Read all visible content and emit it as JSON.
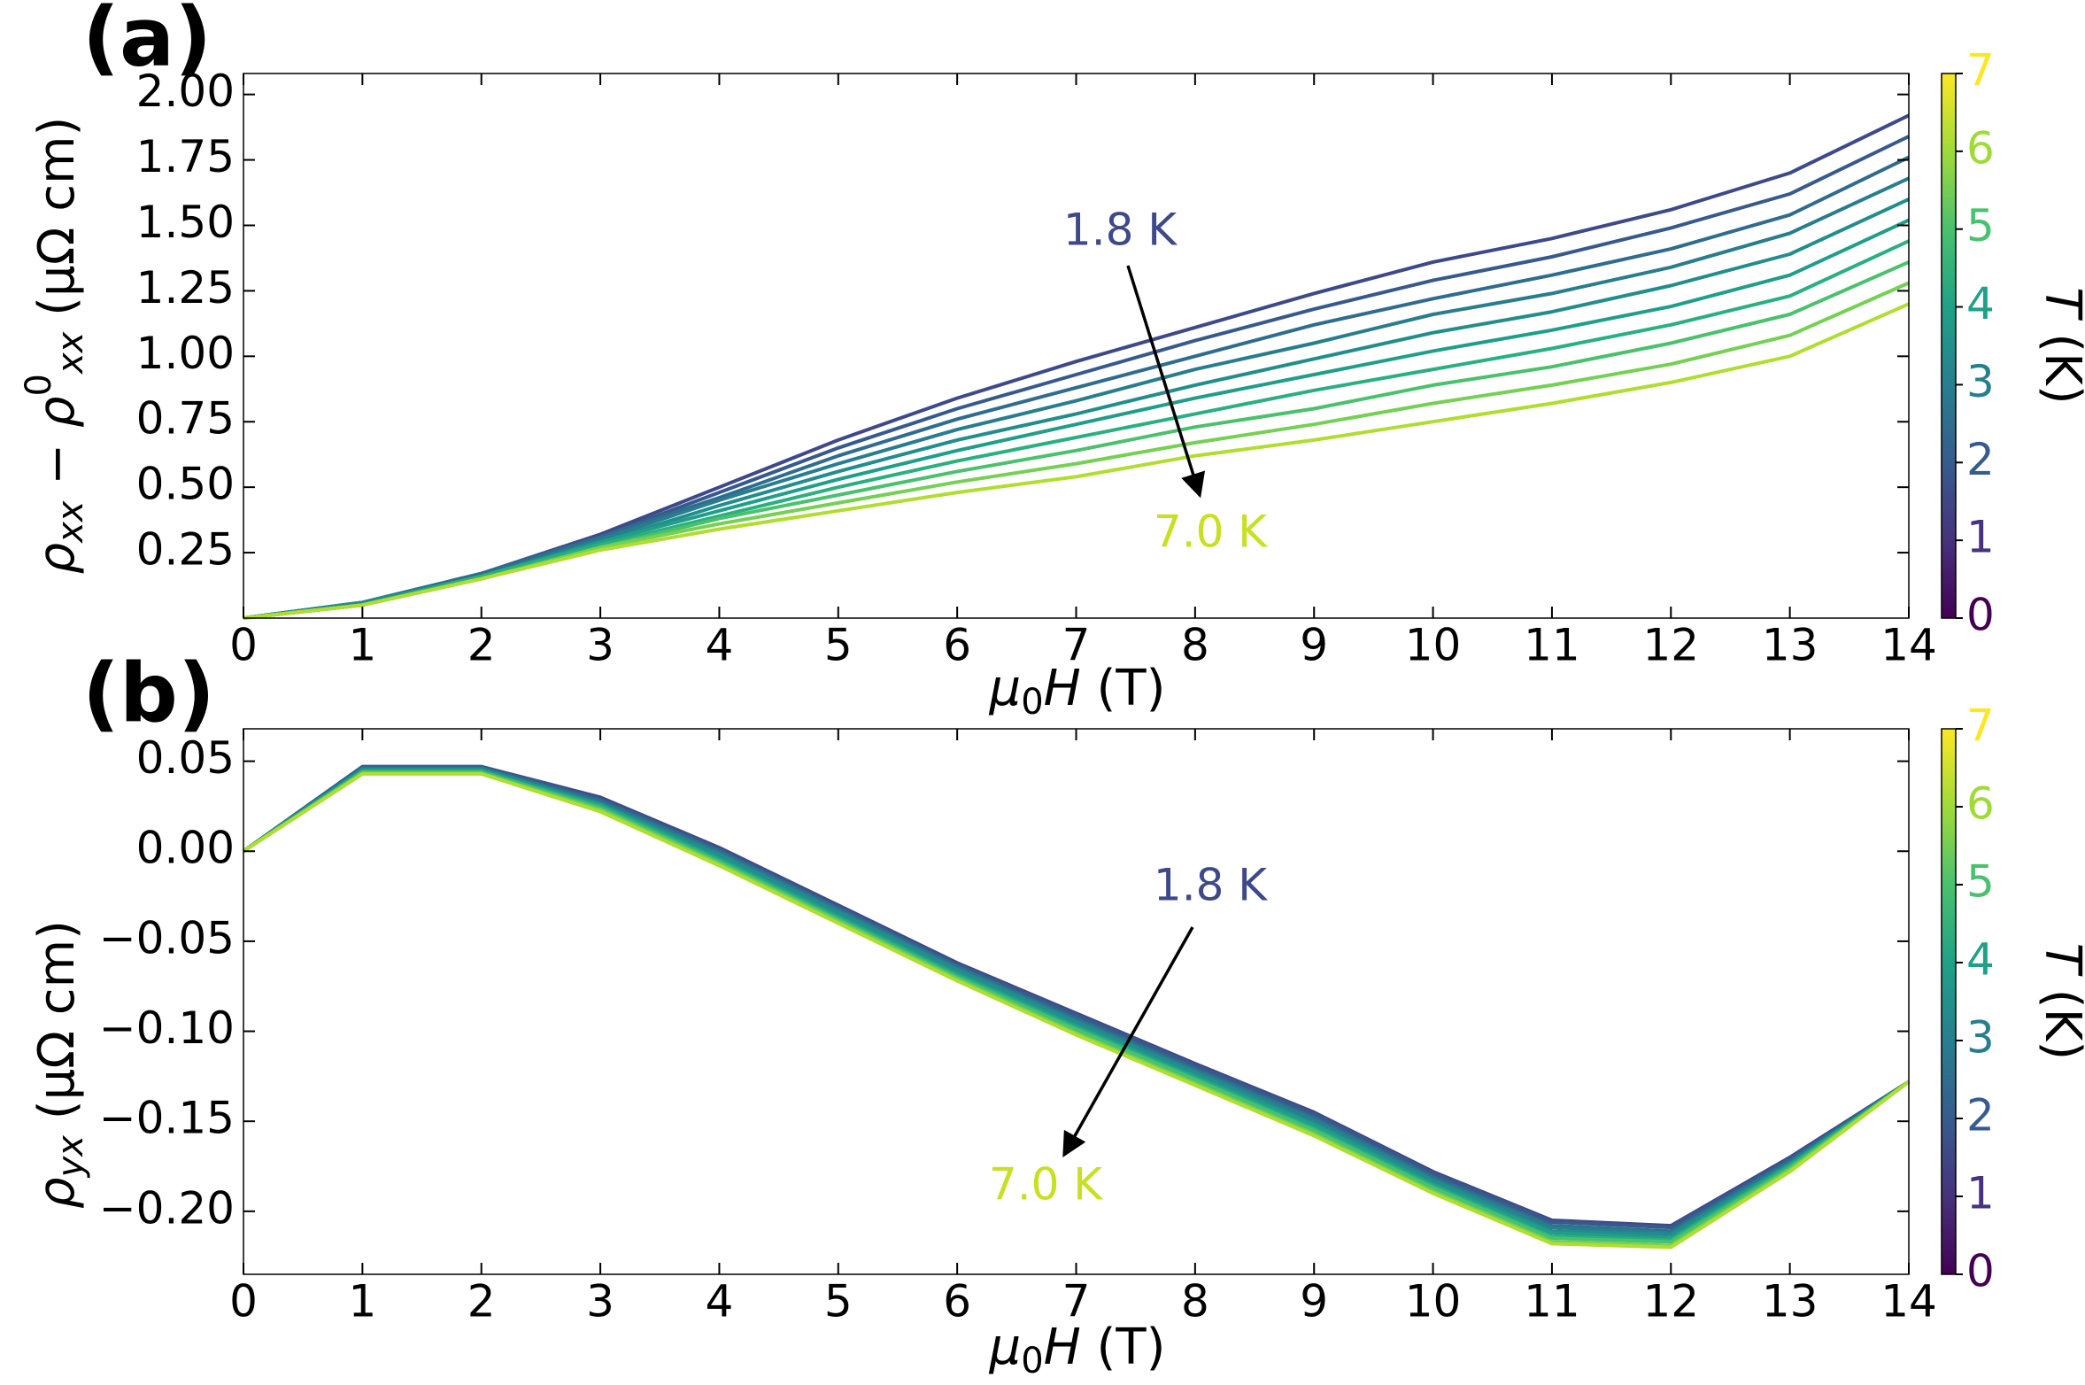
{
  "chart_data": [
    {
      "type": "line",
      "panel_label": "(a)",
      "xlabel": [
        {
          "text": "μ",
          "italic": true
        },
        {
          "text": "0",
          "sub": true
        },
        {
          "text": "H",
          "italic": true
        },
        {
          "text": " (T)"
        }
      ],
      "ylabel": [
        {
          "text": "ρ",
          "italic": true
        },
        {
          "text": "xx",
          "sub": true,
          "italic": true
        },
        {
          "text": " − "
        },
        {
          "text": "ρ",
          "italic": true
        },
        {
          "text": "0",
          "sup": true
        },
        {
          "text": "xx",
          "sub": true,
          "italic": true
        },
        {
          "text": " (μΩ cm)"
        }
      ],
      "x": [
        0,
        1,
        2,
        3,
        4,
        5,
        6,
        7,
        8,
        9,
        10,
        11,
        12,
        13,
        14
      ],
      "xlim": [
        0,
        14
      ],
      "xticks": [
        0,
        1,
        2,
        3,
        4,
        5,
        6,
        7,
        8,
        9,
        10,
        11,
        12,
        13,
        14
      ],
      "ylim": [
        0,
        2.08
      ],
      "yticks": [
        0.25,
        {
          "value": 0.5,
          "label": "0.50"
        },
        0.75,
        {
          "value": 1,
          "label": "1.00"
        },
        1.25,
        {
          "value": 1.5,
          "label": "1.50"
        },
        1.75,
        {
          "value": 2,
          "label": "2.00"
        }
      ],
      "grid": false,
      "series": [
        {
          "color": "#3e4989",
          "values": [
            0,
            0.06,
            0.17,
            0.32,
            0.5,
            0.68,
            0.84,
            0.98,
            1.11,
            1.24,
            1.36,
            1.45,
            1.56,
            1.7,
            1.92
          ]
        },
        {
          "color": "#375a8c",
          "values": [
            0,
            0.06,
            0.17,
            0.31,
            0.48,
            0.65,
            0.8,
            0.93,
            1.06,
            1.18,
            1.29,
            1.38,
            1.49,
            1.62,
            1.84
          ]
        },
        {
          "color": "#2f6c8e",
          "values": [
            0,
            0.06,
            0.17,
            0.31,
            0.46,
            0.62,
            0.76,
            0.88,
            1.0,
            1.12,
            1.22,
            1.31,
            1.41,
            1.54,
            1.76
          ]
        },
        {
          "color": "#287d8e",
          "values": [
            0,
            0.06,
            0.16,
            0.3,
            0.45,
            0.59,
            0.72,
            0.83,
            0.95,
            1.05,
            1.16,
            1.24,
            1.34,
            1.47,
            1.68
          ]
        },
        {
          "color": "#228d8d",
          "values": [
            0,
            0.06,
            0.16,
            0.29,
            0.43,
            0.56,
            0.68,
            0.78,
            0.89,
            0.99,
            1.09,
            1.17,
            1.27,
            1.39,
            1.6
          ]
        },
        {
          "color": "#1f9e89",
          "values": [
            0,
            0.05,
            0.16,
            0.29,
            0.41,
            0.53,
            0.64,
            0.74,
            0.84,
            0.93,
            1.02,
            1.1,
            1.19,
            1.31,
            1.52
          ]
        },
        {
          "color": "#2ab07f",
          "values": [
            0,
            0.05,
            0.16,
            0.28,
            0.39,
            0.5,
            0.6,
            0.69,
            0.78,
            0.87,
            0.95,
            1.03,
            1.12,
            1.23,
            1.44
          ]
        },
        {
          "color": "#4ac16d",
          "values": [
            0,
            0.05,
            0.15,
            0.27,
            0.38,
            0.47,
            0.56,
            0.64,
            0.73,
            0.8,
            0.89,
            0.96,
            1.05,
            1.16,
            1.36
          ]
        },
        {
          "color": "#75d054",
          "values": [
            0,
            0.05,
            0.15,
            0.27,
            0.36,
            0.44,
            0.52,
            0.59,
            0.67,
            0.74,
            0.82,
            0.89,
            0.97,
            1.08,
            1.28
          ]
        },
        {
          "color": "#b0dd2f",
          "values": [
            0,
            0.05,
            0.15,
            0.26,
            0.34,
            0.41,
            0.48,
            0.54,
            0.62,
            0.68,
            0.75,
            0.82,
            0.9,
            1.0,
            1.2
          ]
        }
      ],
      "annotations": [
        {
          "text": "1.8 K",
          "color": "#3e4989"
        },
        {
          "text": "7.0 K",
          "color": "#c8e020"
        }
      ],
      "colorbar": {
        "label": [
          {
            "text": "T",
            "italic": true
          },
          {
            "text": " (K)"
          }
        ],
        "lim": [
          0,
          7
        ],
        "ticks": [
          0,
          1,
          2,
          3,
          4,
          5,
          6,
          7
        ],
        "colors": [
          "#440154",
          "#46327e",
          "#365c8d",
          "#277f8e",
          "#1fa187",
          "#4ac16d",
          "#a0da39",
          "#fde725"
        ]
      }
    },
    {
      "type": "line",
      "panel_label": "(b)",
      "xlabel": [
        {
          "text": "μ",
          "italic": true
        },
        {
          "text": "0",
          "sub": true
        },
        {
          "text": "H",
          "italic": true
        },
        {
          "text": " (T)"
        }
      ],
      "ylabel": [
        {
          "text": "ρ",
          "italic": true
        },
        {
          "text": "yx",
          "sub": true,
          "italic": true
        },
        {
          "text": " (μΩ cm)"
        }
      ],
      "x": [
        0,
        1,
        2,
        3,
        4,
        5,
        6,
        7,
        8,
        9,
        10,
        11,
        12,
        13,
        14
      ],
      "xlim": [
        0,
        14
      ],
      "xticks": [
        0,
        1,
        2,
        3,
        4,
        5,
        6,
        7,
        8,
        9,
        10,
        11,
        12,
        13,
        14
      ],
      "ylim": [
        -0.235,
        0.068
      ],
      "yticks": [
        {
          "value": -0.2,
          "label": "−0.20"
        },
        {
          "value": -0.15,
          "label": "−0.15"
        },
        {
          "value": -0.1,
          "label": "−0.10"
        },
        {
          "value": -0.05,
          "label": "−0.05"
        },
        {
          "value": 0,
          "label": "0.00"
        },
        0.05
      ],
      "grid": false,
      "series": [
        {
          "color": "#3e4989",
          "values": [
            0,
            0.047,
            0.047,
            0.03,
            0.002,
            -0.03,
            -0.062,
            -0.09,
            -0.118,
            -0.145,
            -0.178,
            -0.205,
            -0.208,
            -0.17,
            -0.128
          ]
        },
        {
          "color": "#375a8c",
          "values": [
            0,
            0.047,
            0.047,
            0.029,
            0.001,
            -0.031,
            -0.063,
            -0.091,
            -0.119,
            -0.146,
            -0.179,
            -0.206,
            -0.209,
            -0.171,
            -0.128
          ]
        },
        {
          "color": "#2f6c8e",
          "values": [
            0,
            0.046,
            0.046,
            0.028,
            0,
            -0.032,
            -0.064,
            -0.093,
            -0.121,
            -0.148,
            -0.181,
            -0.208,
            -0.211,
            -0.172,
            -0.128
          ]
        },
        {
          "color": "#287d8e",
          "values": [
            0,
            0.046,
            0.046,
            0.027,
            -0.001,
            -0.033,
            -0.065,
            -0.094,
            -0.122,
            -0.149,
            -0.182,
            -0.209,
            -0.212,
            -0.173,
            -0.128
          ]
        },
        {
          "color": "#228d8d",
          "values": [
            0,
            0.045,
            0.045,
            0.026,
            -0.002,
            -0.034,
            -0.066,
            -0.095,
            -0.123,
            -0.151,
            -0.183,
            -0.211,
            -0.213,
            -0.174,
            -0.128
          ]
        },
        {
          "color": "#1f9e89",
          "values": [
            0,
            0.045,
            0.045,
            0.026,
            -0.004,
            -0.036,
            -0.068,
            -0.097,
            -0.125,
            -0.152,
            -0.185,
            -0.212,
            -0.215,
            -0.174,
            -0.128
          ]
        },
        {
          "color": "#2ab07f",
          "values": [
            0,
            0.044,
            0.044,
            0.025,
            -0.005,
            -0.037,
            -0.069,
            -0.098,
            -0.126,
            -0.154,
            -0.186,
            -0.214,
            -0.216,
            -0.175,
            -0.128
          ]
        },
        {
          "color": "#4ac16d",
          "values": [
            0,
            0.044,
            0.044,
            0.024,
            -0.006,
            -0.038,
            -0.07,
            -0.099,
            -0.127,
            -0.155,
            -0.187,
            -0.215,
            -0.217,
            -0.176,
            -0.128
          ]
        },
        {
          "color": "#75d054",
          "values": [
            0,
            0.043,
            0.043,
            0.023,
            -0.007,
            -0.039,
            -0.071,
            -0.101,
            -0.129,
            -0.157,
            -0.189,
            -0.217,
            -0.219,
            -0.177,
            -0.128
          ]
        },
        {
          "color": "#b0dd2f",
          "values": [
            0,
            0.043,
            0.043,
            0.022,
            -0.008,
            -0.04,
            -0.072,
            -0.102,
            -0.13,
            -0.158,
            -0.19,
            -0.218,
            -0.22,
            -0.178,
            -0.128
          ]
        }
      ],
      "annotations": [
        {
          "text": "1.8 K",
          "color": "#3e4989"
        },
        {
          "text": "7.0 K",
          "color": "#c8e020"
        }
      ],
      "colorbar": {
        "label": [
          {
            "text": "T",
            "italic": true
          },
          {
            "text": " (K)"
          }
        ],
        "lim": [
          0,
          7
        ],
        "ticks": [
          0,
          1,
          2,
          3,
          4,
          5,
          6,
          7
        ],
        "colors": [
          "#440154",
          "#46327e",
          "#365c8d",
          "#277f8e",
          "#1fa187",
          "#4ac16d",
          "#a0da39",
          "#fde725"
        ]
      }
    }
  ]
}
